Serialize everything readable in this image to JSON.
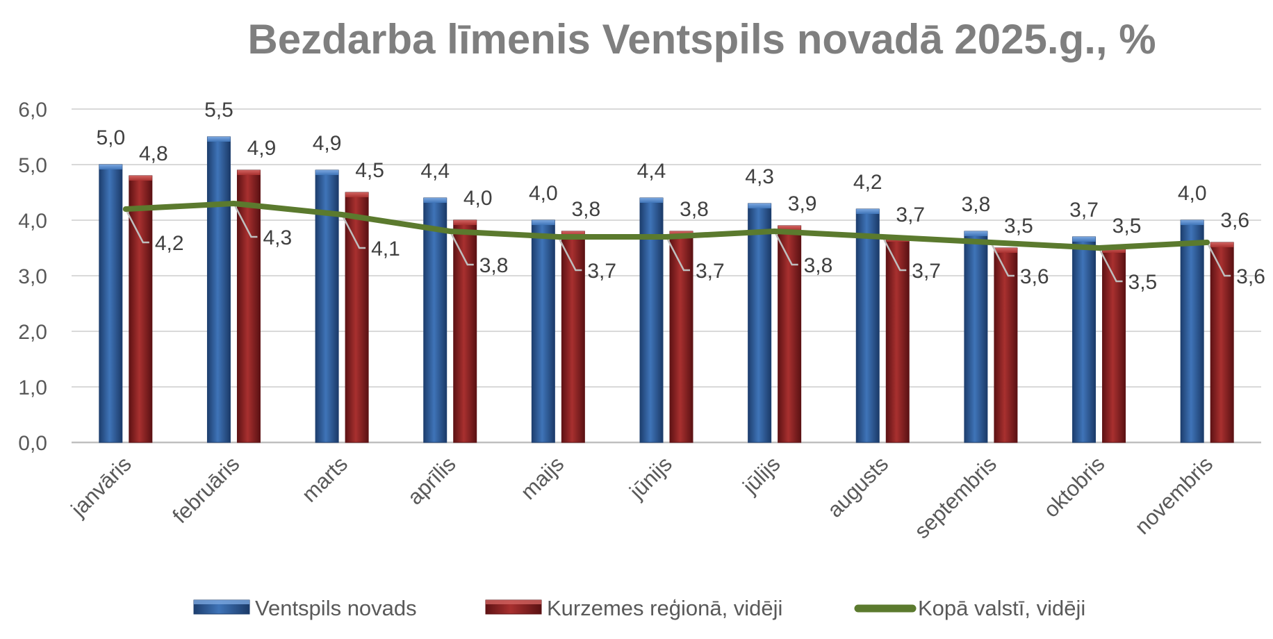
{
  "chart_data": {
    "type": "bar",
    "title": "Bezdarba līmenis Ventspils novadā 2025.g., %",
    "xlabel": "",
    "ylabel": "",
    "ylim": [
      0,
      6
    ],
    "yticks": [
      "0,0",
      "1,0",
      "2,0",
      "3,0",
      "4,0",
      "5,0",
      "6,0"
    ],
    "yticks_values": [
      0,
      1,
      2,
      3,
      4,
      5,
      6
    ],
    "grid": true,
    "legend_position": "bottom",
    "categories": [
      "janvāris",
      "februāris",
      "marts",
      "aprīlis",
      "maijs",
      "jūnijs",
      "jūlijs",
      "augusts",
      "septembris",
      "oktobris",
      "novembris"
    ],
    "series": [
      {
        "name": "Ventspils novads",
        "kind": "bar",
        "color": "#2e5c9a",
        "values": [
          5.0,
          5.5,
          4.9,
          4.4,
          4.0,
          4.4,
          4.3,
          4.2,
          3.8,
          3.7,
          4.0
        ],
        "labels": [
          "5,0",
          "5,5",
          "4,9",
          "4,4",
          "4,0",
          "4,4",
          "4,3",
          "4,2",
          "3,8",
          "3,7",
          "4,0"
        ]
      },
      {
        "name": "Kurzemes reģionā, vidēji",
        "kind": "bar",
        "color": "#8b2022",
        "values": [
          4.8,
          4.9,
          4.5,
          4.0,
          3.8,
          3.8,
          3.9,
          3.7,
          3.5,
          3.5,
          3.6
        ],
        "labels": [
          "4,8",
          "4,9",
          "4,5",
          "4,0",
          "3,8",
          "3,8",
          "3,9",
          "3,7",
          "3,5",
          "3,5",
          "3,6"
        ]
      },
      {
        "name": "Kopā valstī, vidēji",
        "kind": "line",
        "color": "#5b7a2e",
        "values": [
          4.2,
          4.3,
          4.1,
          3.8,
          3.7,
          3.7,
          3.8,
          3.7,
          3.6,
          3.5,
          3.6
        ],
        "labels": [
          "4,2",
          "4,3",
          "4,1",
          "3,8",
          "3,7",
          "3,7",
          "3,8",
          "3,7",
          "3,6",
          "3,5",
          "3,6"
        ]
      }
    ]
  }
}
